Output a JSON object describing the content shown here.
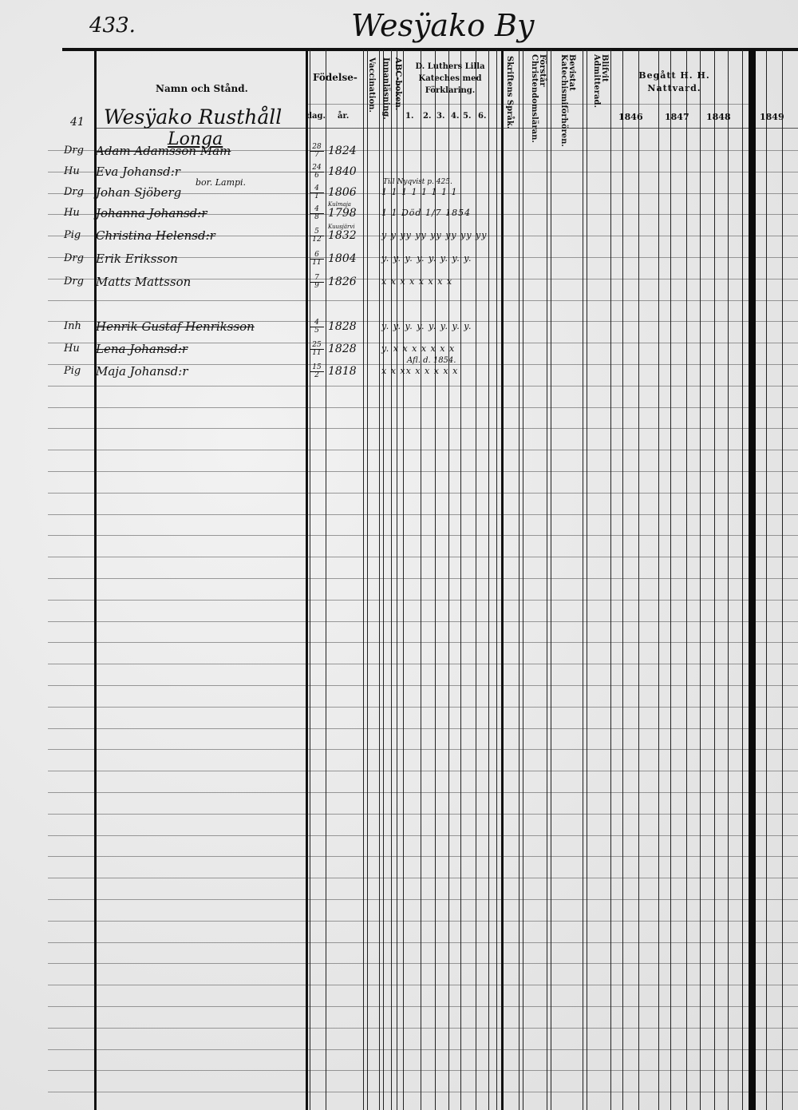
{
  "page_number": "433.",
  "village_title": "Wesÿako By",
  "headers": {
    "name": "Namn och Stånd.",
    "birth": "Födelse-",
    "day": "dag.",
    "year": "år.",
    "vaccination": "Vaccination.",
    "reading": "Innanläsning.",
    "abc": "ABC-boken.",
    "catechism": "D. Luthers Lilla Kateches med Förklaring.",
    "catechism_parts": [
      "1.",
      "2.",
      "3.",
      "4.",
      "5.",
      "6."
    ],
    "scripture": "Skriftens Språk.",
    "christian_doctrine": "Förstår Christendomsläran.",
    "catechism_questions": "Bevistat Katechismiförhören.",
    "admitted": "Blifvit Admitterad.",
    "communion": "Begått H. H. Nattvard.",
    "years": [
      "1846",
      "1847",
      "1848",
      "1849"
    ]
  },
  "section": {
    "number": "41",
    "farm": "Wesÿako Rusthåll",
    "place": "Longa"
  },
  "entries": [
    {
      "title": "Drg",
      "name": "Adam Adamsson Mam",
      "day": "28",
      "month": "7",
      "year": "1824",
      "struck": true,
      "marks": ""
    },
    {
      "title": "Hu",
      "name": "Eva Johansd:r",
      "day": "24",
      "month": "6",
      "year": "1840",
      "struck": false,
      "marks": "",
      "note": "bor. Lampi."
    },
    {
      "title": "Drg",
      "name": "Johan Sjöberg",
      "day": "4",
      "month": "1",
      "year": "1806",
      "struck": false,
      "marks": "1   1   1   1   1   1   1   1",
      "note_above": "Till Nyqvist p. 425."
    },
    {
      "title": "Hu",
      "name": "Johanna Johansd:r",
      "day": "4",
      "month": "8",
      "year": "1798",
      "struck": true,
      "marks": "1   1   Död 1/7 1854",
      "year_note": "Kulmaja"
    },
    {
      "title": "Pig",
      "name": "Christina Helensd:r",
      "day": "5",
      "month": "12",
      "year": "1832",
      "struck": true,
      "marks": "y  y  yy yy yy yy yy yy",
      "year_note": "Kuusjärvi"
    },
    {
      "title": "Drg",
      "name": "Erik Eriksson",
      "day": "6",
      "month": "11",
      "year": "1804",
      "struck": false,
      "marks": "y.  y. y.  y.  y.  y.  y.  y."
    },
    {
      "title": "Drg",
      "name": "Matts Mattsson",
      "day": "7",
      "month": "9",
      "year": "1826",
      "struck": false,
      "marks": "x  x  x  x  x  x  x  x"
    },
    {
      "title": "Inh",
      "name": "Henrik Gustaf Henriksson",
      "day": "4",
      "month": "5",
      "year": "1828",
      "struck": true,
      "marks": "y.  y.  y.  y.  y.  y.  y.  y."
    },
    {
      "title": "Hu",
      "name": "Lena Johansd:r",
      "day": "25",
      "month": "11",
      "year": "1828",
      "struck": true,
      "marks": "y.  x  x  x  x  x  x  x",
      "note_below": "Afl. d. 1854."
    },
    {
      "title": "Pig",
      "name": "Maja Johansd:r",
      "day": "15",
      "month": "2",
      "year": "1818",
      "struck": false,
      "marks": "x  x  xx  x  x  x  x  x"
    }
  ]
}
